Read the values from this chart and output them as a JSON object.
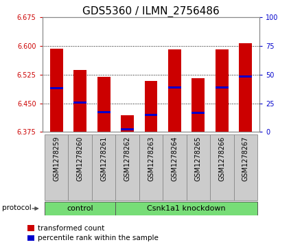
{
  "title": "GDS5360 / ILMN_2756486",
  "samples": [
    "GSM1278259",
    "GSM1278260",
    "GSM1278261",
    "GSM1278262",
    "GSM1278263",
    "GSM1278264",
    "GSM1278265",
    "GSM1278266",
    "GSM1278267"
  ],
  "bar_tops": [
    6.593,
    6.537,
    6.52,
    6.418,
    6.508,
    6.591,
    6.515,
    6.592,
    6.607
  ],
  "bar_bottoms": [
    6.375,
    6.375,
    6.375,
    6.375,
    6.375,
    6.375,
    6.375,
    6.375,
    6.375
  ],
  "percentile_vals": [
    6.49,
    6.452,
    6.427,
    6.382,
    6.42,
    6.492,
    6.425,
    6.492,
    6.52
  ],
  "ylim": [
    6.375,
    6.675
  ],
  "yticks": [
    6.375,
    6.45,
    6.525,
    6.6,
    6.675
  ],
  "right_yticks": [
    0,
    25,
    50,
    75,
    100
  ],
  "right_ylim": [
    0,
    100
  ],
  "bar_color": "#cc0000",
  "percentile_color": "#0000cc",
  "grid_color": "#000000",
  "control_label": "control",
  "knockdown_label": "Csnk1a1 knockdown",
  "n_control": 3,
  "n_knockdown": 6,
  "protocol_label": "protocol",
  "legend_red_label": "transformed count",
  "legend_blue_label": "percentile rank within the sample",
  "bar_width": 0.55,
  "left_tick_color": "#cc0000",
  "right_tick_color": "#0000cc",
  "title_fontsize": 11,
  "tick_fontsize": 7,
  "label_fontsize": 8,
  "gray_box_color": "#cccccc",
  "green_color": "#77dd77",
  "pct_bar_height": 0.005
}
